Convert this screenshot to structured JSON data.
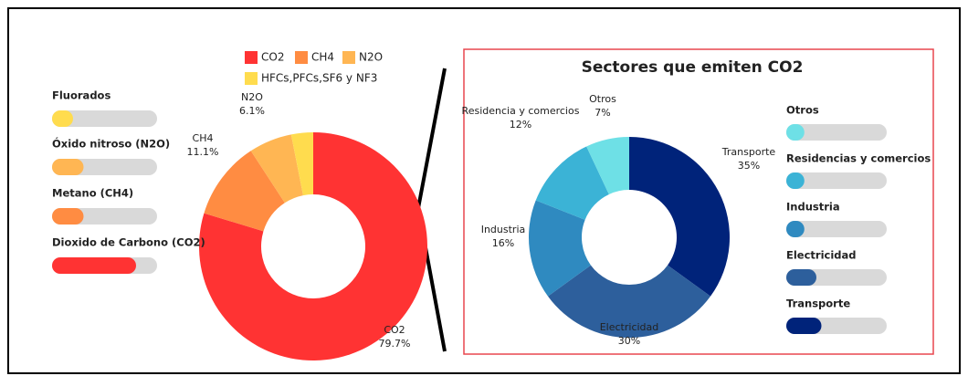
{
  "chart_data": [
    {
      "type": "pie",
      "donut": true,
      "categories": [
        "CO2",
        "CH4",
        "N2O",
        "HFCs,PFCs,SF6 y NF3"
      ],
      "values": [
        79.7,
        11.1,
        6.1,
        3.1
      ],
      "value_labels": [
        "79.7%",
        "11.1%",
        "6.1%",
        null
      ],
      "colors": [
        "#ff3333",
        "#ff8c42",
        "#ffb653",
        "#ffdc4e"
      ],
      "legend": true
    },
    {
      "type": "pie",
      "donut": true,
      "title": "Sectores que emiten CO2",
      "categories": [
        "Transporte",
        "Electricidad",
        "Industria",
        "Residencia y comercios",
        "Otros"
      ],
      "values": [
        35,
        30,
        16,
        12,
        7
      ],
      "value_labels": [
        "35%",
        "30%",
        "16%",
        "12%",
        "7%"
      ],
      "colors": [
        "#00237a",
        "#2d5f9c",
        "#2f8ac0",
        "#3bb3d6",
        "#6ee0e6"
      ],
      "legend": false
    },
    {
      "type": "progress",
      "categories": [
        "Fluorados",
        "Óxido nitroso (N2O)",
        "Metano (CH4)",
        "Dioxido de Carbono (CO2)"
      ],
      "values": [
        20,
        30,
        30,
        80
      ],
      "colors": [
        "#ffdc4e",
        "#ffb653",
        "#ff8c42",
        "#ff3333"
      ],
      "xlim": [
        0,
        100
      ]
    },
    {
      "type": "progress",
      "categories": [
        "Otros",
        "Residencias y comercios",
        "Industria",
        "Electricidad",
        "Transporte"
      ],
      "values": [
        18,
        18,
        18,
        30,
        35
      ],
      "colors": [
        "#6ee0e6",
        "#3bb3d6",
        "#2f8ac0",
        "#2d5f9c",
        "#00237a"
      ],
      "xlim": [
        0,
        100
      ]
    }
  ]
}
